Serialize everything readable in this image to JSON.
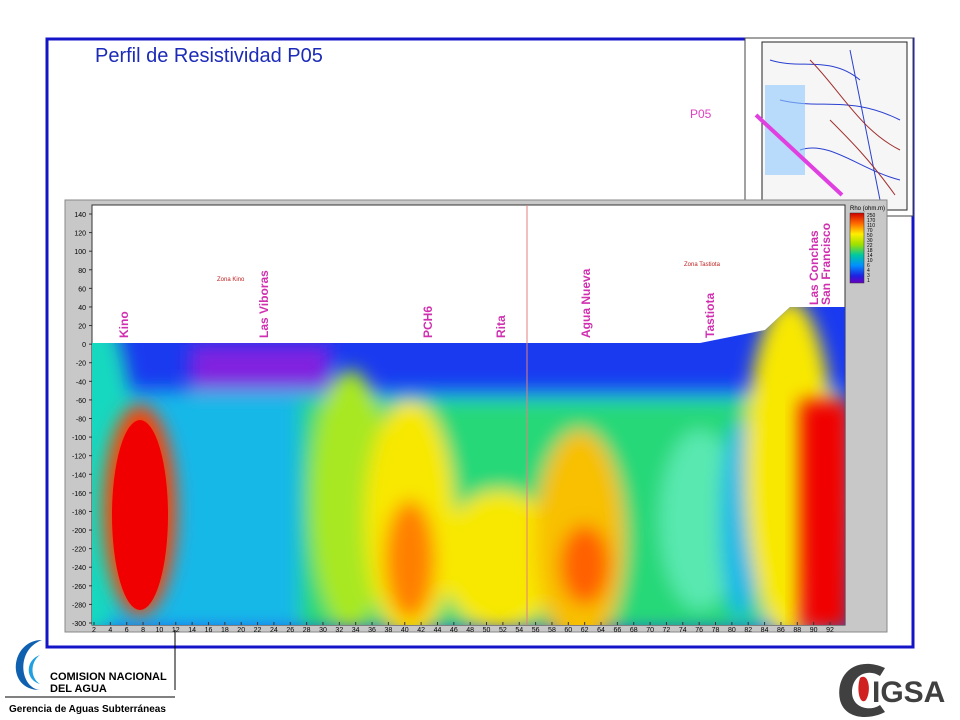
{
  "title": "Perfil de Resistividad P05",
  "map": {
    "label": "P05"
  },
  "profile": {
    "zones": [
      "Zona Kino",
      "Zona Tastiota"
    ],
    "wells": [
      "Kino",
      "Las Viboras",
      "PCH6",
      "Rita",
      "Agua Nueva",
      "Tastiota",
      "Las Conchas",
      "San Francisco"
    ],
    "yticks": [
      140,
      120,
      100,
      80,
      60,
      40,
      20,
      0,
      -20,
      -40,
      -60,
      -80,
      -100,
      -120,
      -140,
      -160,
      -180,
      -200,
      -220,
      -240,
      -260,
      -280,
      -300
    ],
    "xticks": [
      2,
      4,
      6,
      8,
      10,
      12,
      14,
      16,
      18,
      20,
      22,
      24,
      26,
      28,
      30,
      32,
      34,
      36,
      38,
      40,
      42,
      44,
      46,
      48,
      50,
      52,
      54,
      56,
      58,
      60,
      62,
      64,
      66,
      68,
      70,
      72,
      74,
      76,
      78,
      80,
      82,
      84,
      86,
      88,
      90,
      92
    ],
    "legend": {
      "title": "Rho (ohm.m)",
      "values": [
        250,
        170,
        110,
        70,
        50,
        30,
        22,
        18,
        14,
        10,
        6,
        4,
        3,
        1
      ]
    }
  },
  "footer": {
    "org": [
      "COMISION NACIONAL",
      "DEL AGUA"
    ],
    "department": "Gerencia de Aguas Subterráneas",
    "company": "IGSA"
  }
}
